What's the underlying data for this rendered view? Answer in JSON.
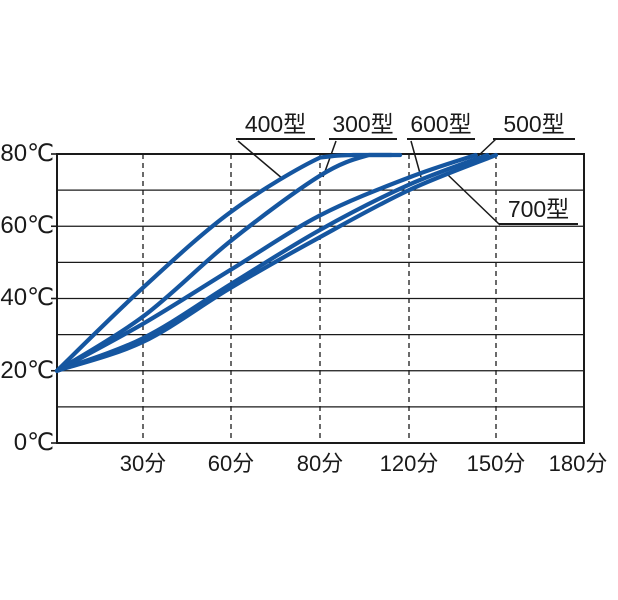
{
  "chart_data": {
    "type": "line",
    "title": "",
    "xlabel": "",
    "ylabel": "",
    "x_unit": "分",
    "y_unit": "℃",
    "x_scale_note": "non-linear axis: labeled ticks 30,60,80,120,150,180 minutes are equally spaced",
    "x_tick_minutes": [
      30,
      60,
      80,
      120,
      150,
      180
    ],
    "x_tick_labels": [
      "30分",
      "60分",
      "80分",
      "120分",
      "150分",
      "180分"
    ],
    "y_tick_values": [
      80,
      60,
      40,
      20,
      0
    ],
    "y_tick_labels": [
      "80℃",
      "60℃",
      "40℃",
      "20℃",
      "0℃"
    ],
    "ylim": [
      0,
      80
    ],
    "y_gridline_step": 10,
    "grid": "horizontal solid every 10°C, vertical dashed at labeled ticks",
    "line_color": "#1556a0",
    "axis_color": "#1a1a1a",
    "legend_position": "in-chart labels with leader lines",
    "series": [
      {
        "name": "400型",
        "points_min_degC": [
          [
            0,
            20
          ],
          [
            30,
            43
          ],
          [
            60,
            64
          ],
          [
            80,
            79
          ],
          [
            95,
            80
          ],
          [
            116,
            80
          ]
        ]
      },
      {
        "name": "300型",
        "points_min_degC": [
          [
            0,
            20
          ],
          [
            30,
            35
          ],
          [
            60,
            56
          ],
          [
            80,
            74
          ],
          [
            102,
            80
          ],
          [
            112,
            80
          ]
        ]
      },
      {
        "name": "600型",
        "points_min_degC": [
          [
            0,
            20
          ],
          [
            30,
            33
          ],
          [
            60,
            48
          ],
          [
            80,
            63
          ],
          [
            120,
            73.5
          ],
          [
            143,
            80
          ]
        ]
      },
      {
        "name": "500型",
        "points_min_degC": [
          [
            0,
            20
          ],
          [
            30,
            29
          ],
          [
            60,
            44
          ],
          [
            80,
            59
          ],
          [
            120,
            71.5
          ],
          [
            147,
            80
          ]
        ]
      },
      {
        "name": "700型",
        "points_min_degC": [
          [
            0,
            20
          ],
          [
            30,
            28
          ],
          [
            60,
            43
          ],
          [
            80,
            57
          ],
          [
            120,
            70
          ],
          [
            150,
            80
          ]
        ]
      }
    ]
  }
}
